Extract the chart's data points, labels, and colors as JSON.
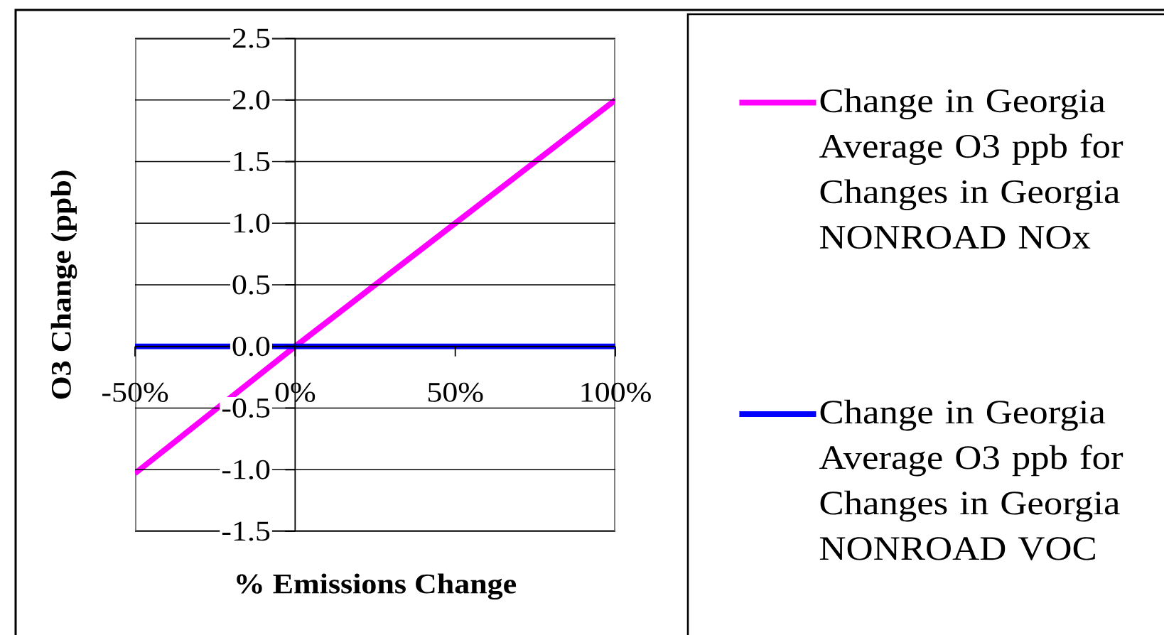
{
  "chart_data": {
    "type": "line",
    "xlabel": "% Emissions Change",
    "ylabel": "O3 Change (ppb)",
    "x": [
      -50,
      0,
      50,
      100
    ],
    "series": [
      {
        "name": "Change in Georgia Average O3 ppb for Changes in Georgia NONROAD NOx",
        "color": "#ff00ff",
        "values": [
          -1.03,
          0,
          1.0,
          2.0
        ]
      },
      {
        "name": "Change in Georgia Average O3 ppb for Changes in Georgia NONROAD VOC",
        "color": "#0000ff",
        "values": [
          0,
          0,
          0,
          0
        ]
      }
    ],
    "xlim": [
      -50,
      100
    ],
    "xticks": [
      {
        "value": -50,
        "label": "-50%"
      },
      {
        "value": 0,
        "label": "0%"
      },
      {
        "value": 50,
        "label": "50%"
      },
      {
        "value": 100,
        "label": "100%"
      }
    ],
    "ylim": [
      -1.5,
      2.5
    ],
    "yticks": [
      -1.5,
      {
        "value": -1,
        "label": "-1.0"
      },
      -0.5,
      {
        "value": 0,
        "label": "0.0"
      },
      0.5,
      {
        "value": 1,
        "label": "1.0"
      },
      1.5,
      {
        "value": 2,
        "label": "2.0"
      },
      2.5
    ],
    "grid": "y",
    "legend": "right"
  }
}
